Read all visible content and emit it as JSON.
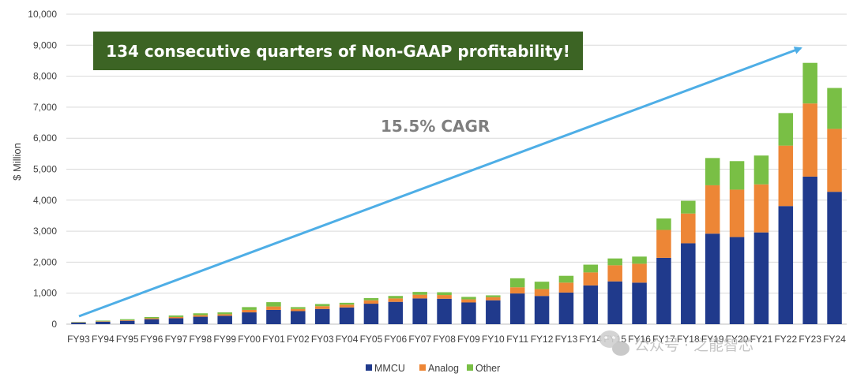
{
  "chart_data": {
    "type": "bar",
    "stacked": true,
    "ylabel": "$ Million",
    "ylim": [
      0,
      10000
    ],
    "yticks": [
      "0",
      "1,000",
      "2,000",
      "3,000",
      "4,000",
      "5,000",
      "6,000",
      "7,000",
      "8,000",
      "9,000",
      "10,000"
    ],
    "ytick_values": [
      0,
      1000,
      2000,
      3000,
      4000,
      5000,
      6000,
      7000,
      8000,
      9000,
      10000
    ],
    "grid": true,
    "legend_position": "bottom",
    "categories": [
      "FY93",
      "FY94",
      "FY95",
      "FY96",
      "FY97",
      "FY98",
      "FY99",
      "FY00",
      "FY01",
      "FY02",
      "FY03",
      "FY04",
      "FY05",
      "FY06",
      "FY07",
      "FY08",
      "FY09",
      "FY10",
      "FY11",
      "FY12",
      "FY13",
      "FY14",
      "FY15",
      "FY16",
      "FY17",
      "FY18",
      "FY19",
      "FY20",
      "FY21",
      "FY22",
      "FY23",
      "FY24"
    ],
    "series": [
      {
        "name": "MMCU",
        "color": "#203a8c",
        "values": [
          50,
          80,
          110,
          160,
          190,
          240,
          270,
          380,
          460,
          420,
          490,
          540,
          660,
          720,
          830,
          820,
          700,
          770,
          990,
          910,
          1020,
          1250,
          1380,
          1340,
          2140,
          2610,
          2920,
          2810,
          2960,
          3810,
          4760,
          4270
        ]
      },
      {
        "name": "Analog",
        "color": "#ed8636",
        "values": [
          10,
          15,
          20,
          30,
          40,
          50,
          50,
          80,
          110,
          70,
          90,
          90,
          110,
          110,
          120,
          120,
          100,
          100,
          200,
          220,
          320,
          420,
          520,
          610,
          900,
          960,
          1560,
          1530,
          1550,
          1950,
          2360,
          2030
        ]
      },
      {
        "name": "Other",
        "color": "#79bf45",
        "values": [
          10,
          20,
          30,
          40,
          50,
          60,
          60,
          90,
          140,
          60,
          70,
          60,
          70,
          80,
          90,
          90,
          80,
          60,
          290,
          240,
          220,
          250,
          220,
          230,
          370,
          410,
          880,
          920,
          930,
          1050,
          1310,
          1320
        ]
      }
    ],
    "annotations": {
      "banner": "134 consecutive quarters of Non-GAAP profitability!",
      "cagr": "15.5% CAGR"
    }
  },
  "colors": {
    "banner_bg": "#3c6424",
    "arrow": "#4eaee6",
    "grid": "#d9d9d9"
  },
  "watermark": {
    "text": "公众号 · 之能智芯",
    "icon": "wechat-logo-icon"
  }
}
